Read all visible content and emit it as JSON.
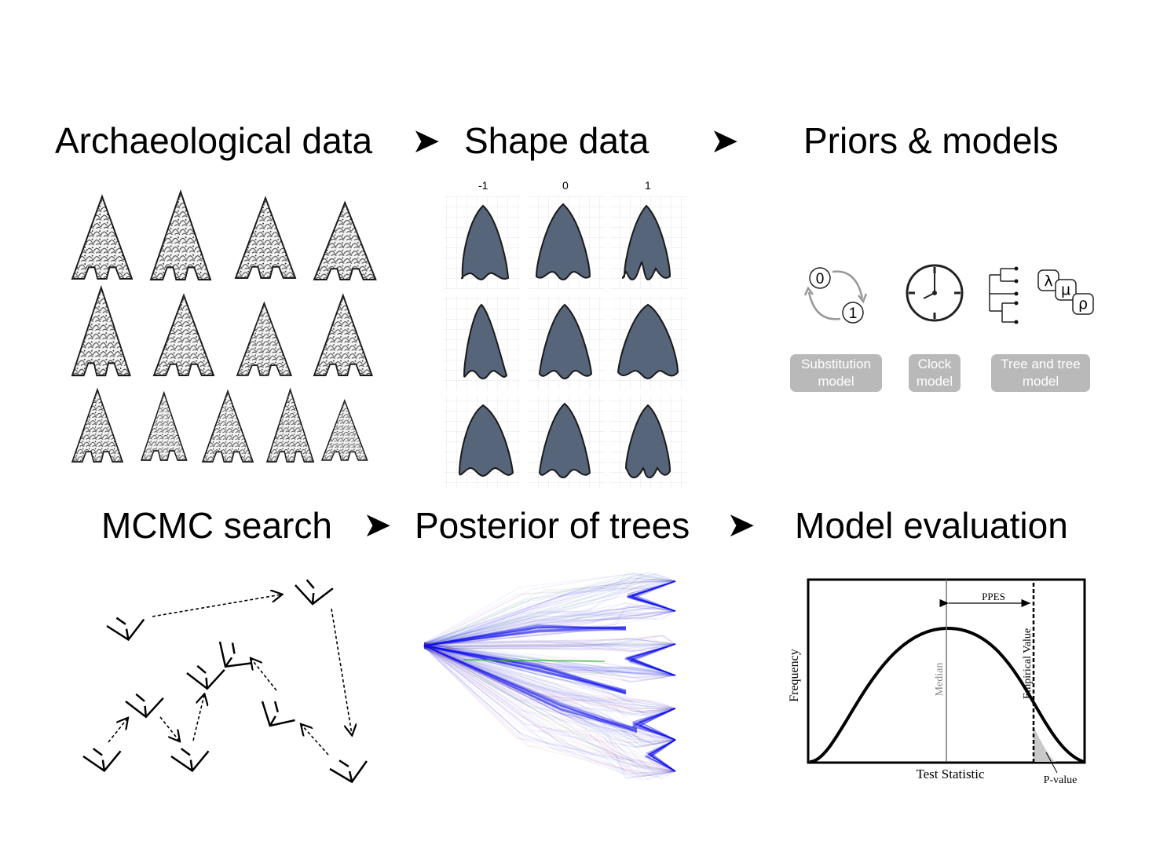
{
  "titles": {
    "archaeological": "Archaeological data",
    "shape": "Shape data",
    "priors": "Priors & models",
    "mcmc": "MCMC search",
    "posterior": "Posterior of trees",
    "evaluation": "Model evaluation"
  },
  "arrow_glyph": "➤",
  "shape_axis": [
    "-1",
    "0",
    "1"
  ],
  "substitution_states": [
    "0",
    "1"
  ],
  "rate_symbols": [
    "λ",
    "μ",
    "ρ"
  ],
  "model_labels": {
    "substitution": [
      "Substitution",
      "model"
    ],
    "clock": [
      "Clock",
      "model"
    ],
    "tree": [
      "Tree and tree",
      "model"
    ]
  },
  "evaluation_plot": {
    "ppes": "PPES",
    "empirical": "Empirical Value",
    "median": "Median",
    "frequency": "Frequency",
    "test_statistic": "Test Statistic",
    "pvalue": "P-value"
  },
  "colors": {
    "shape_fill": "#56657a",
    "tree_blue": "#1010ee",
    "tree_red": "#e05050",
    "tree_green": "#30b030",
    "pill": "#b9b9b9"
  }
}
